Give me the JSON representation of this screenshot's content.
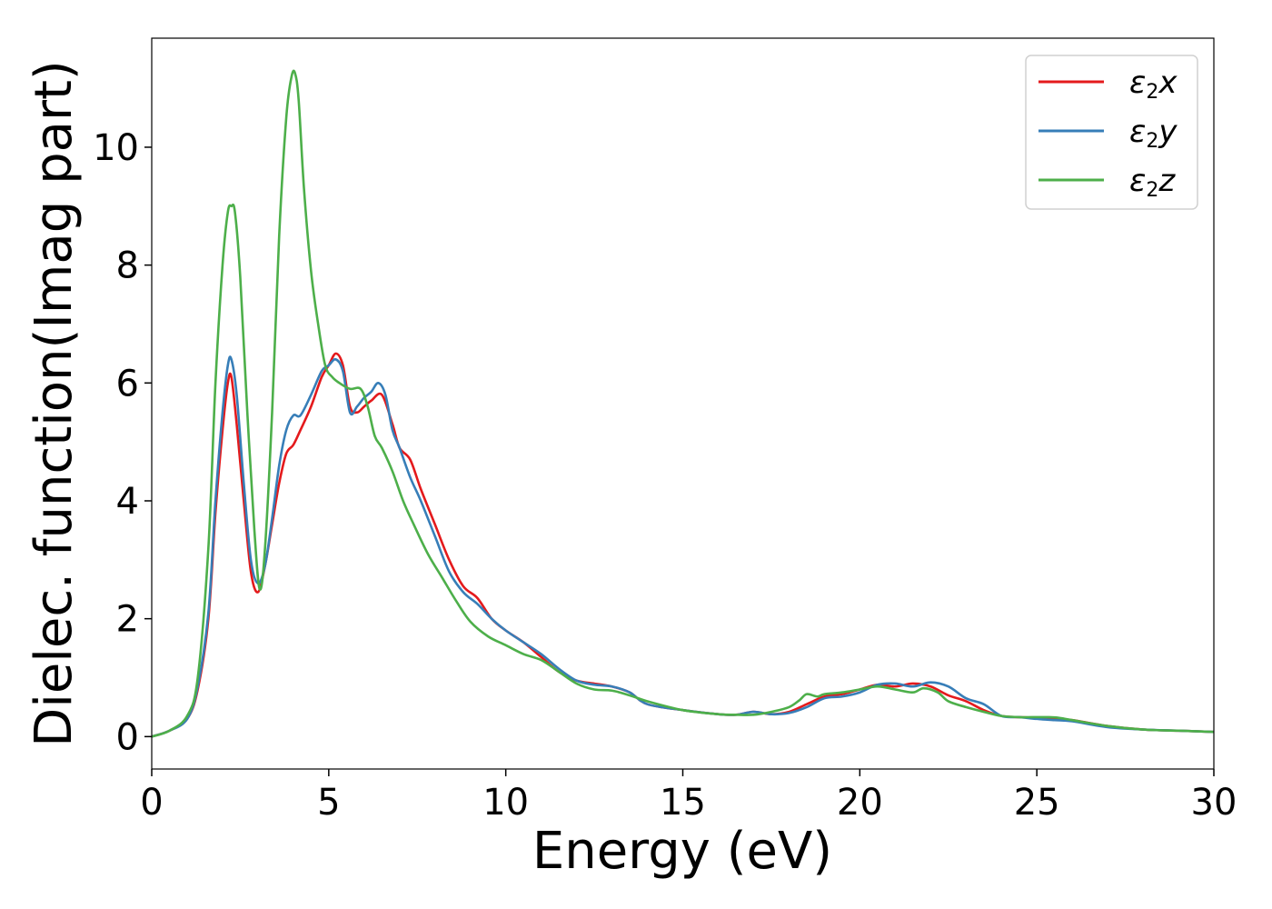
{
  "chart_data": {
    "type": "line",
    "title": "",
    "xlabel": "Energy (eV)",
    "ylabel": "Dielec. function(Imag part)",
    "xlim": [
      0,
      30
    ],
    "ylim": [
      -0.55,
      11.85
    ],
    "xticks": [
      0,
      5,
      10,
      15,
      20,
      25,
      30
    ],
    "yticks": [
      0,
      2,
      4,
      6,
      8,
      10
    ],
    "grid": false,
    "legend_position": "top-right",
    "series": [
      {
        "name": "ε2x",
        "legend": {
          "base": "ε",
          "sub": "2",
          "suffix": "x"
        },
        "color": "#e41a1c",
        "x": [
          0,
          0.5,
          1.0,
          1.3,
          1.6,
          1.8,
          2.0,
          2.15,
          2.25,
          2.4,
          2.6,
          2.8,
          3.0,
          3.2,
          3.4,
          3.6,
          3.8,
          4.0,
          4.2,
          4.5,
          4.8,
          5.0,
          5.2,
          5.4,
          5.6,
          5.8,
          6.0,
          6.2,
          6.5,
          6.8,
          7.0,
          7.3,
          7.6,
          8.0,
          8.4,
          8.8,
          9.2,
          9.6,
          10.0,
          10.5,
          11.0,
          11.5,
          12.0,
          12.5,
          13.0,
          13.5,
          14.0,
          15.0,
          16.0,
          16.5,
          17.0,
          17.5,
          18.0,
          18.5,
          19.0,
          19.5,
          20.0,
          20.5,
          21.0,
          21.5,
          22.0,
          22.5,
          23.0,
          23.5,
          24.0,
          24.5,
          25.0,
          25.5,
          26.0,
          27.0,
          28.0,
          29.0,
          30.0
        ],
        "y": [
          0,
          0.1,
          0.3,
          0.8,
          2.0,
          3.8,
          5.2,
          6.0,
          6.1,
          5.3,
          4.0,
          2.8,
          2.45,
          2.9,
          3.6,
          4.3,
          4.8,
          4.95,
          5.2,
          5.6,
          6.1,
          6.3,
          6.5,
          6.3,
          5.6,
          5.5,
          5.6,
          5.7,
          5.8,
          5.3,
          4.9,
          4.7,
          4.2,
          3.6,
          3.0,
          2.55,
          2.35,
          2.0,
          1.8,
          1.6,
          1.35,
          1.1,
          0.95,
          0.9,
          0.85,
          0.75,
          0.55,
          0.45,
          0.38,
          0.37,
          0.42,
          0.38,
          0.42,
          0.55,
          0.68,
          0.72,
          0.8,
          0.88,
          0.85,
          0.9,
          0.85,
          0.7,
          0.6,
          0.45,
          0.35,
          0.33,
          0.32,
          0.3,
          0.28,
          0.18,
          0.12,
          0.1,
          0.08
        ]
      },
      {
        "name": "ε2y",
        "legend": {
          "base": "ε",
          "sub": "2",
          "suffix": "y"
        },
        "color": "#377eb8",
        "x": [
          0,
          0.5,
          1.0,
          1.3,
          1.6,
          1.8,
          2.0,
          2.15,
          2.25,
          2.4,
          2.6,
          2.8,
          3.0,
          3.2,
          3.4,
          3.6,
          3.8,
          4.0,
          4.2,
          4.5,
          4.8,
          5.0,
          5.2,
          5.4,
          5.6,
          5.8,
          6.0,
          6.2,
          6.4,
          6.6,
          6.8,
          7.0,
          7.3,
          7.6,
          8.0,
          8.4,
          8.8,
          9.2,
          9.6,
          10.0,
          10.5,
          11.0,
          11.5,
          12.0,
          12.5,
          13.0,
          13.5,
          14.0,
          15.0,
          16.0,
          16.5,
          17.0,
          17.5,
          18.0,
          18.5,
          19.0,
          19.5,
          20.0,
          20.5,
          21.0,
          21.5,
          22.0,
          22.5,
          23.0,
          23.5,
          24.0,
          24.5,
          25.0,
          25.5,
          26.0,
          27.0,
          28.0,
          29.0,
          30.0
        ],
        "y": [
          0,
          0.1,
          0.3,
          0.85,
          2.1,
          4.0,
          5.5,
          6.3,
          6.4,
          5.8,
          4.3,
          3.0,
          2.6,
          2.9,
          3.7,
          4.6,
          5.2,
          5.45,
          5.45,
          5.8,
          6.2,
          6.3,
          6.4,
          6.2,
          5.5,
          5.6,
          5.75,
          5.85,
          6.0,
          5.8,
          5.2,
          4.9,
          4.4,
          4.0,
          3.4,
          2.8,
          2.45,
          2.25,
          2.0,
          1.8,
          1.6,
          1.4,
          1.15,
          0.95,
          0.88,
          0.85,
          0.75,
          0.55,
          0.45,
          0.38,
          0.37,
          0.42,
          0.38,
          0.4,
          0.5,
          0.65,
          0.68,
          0.75,
          0.88,
          0.9,
          0.85,
          0.92,
          0.85,
          0.65,
          0.55,
          0.35,
          0.33,
          0.3,
          0.28,
          0.26,
          0.16,
          0.12,
          0.1,
          0.08
        ]
      },
      {
        "name": "ε2z",
        "legend": {
          "base": "ε",
          "sub": "2",
          "suffix": "z"
        },
        "color": "#4daf4a",
        "x": [
          0,
          0.5,
          1.0,
          1.3,
          1.6,
          1.8,
          2.0,
          2.15,
          2.25,
          2.35,
          2.5,
          2.7,
          2.9,
          3.05,
          3.2,
          3.4,
          3.6,
          3.8,
          3.95,
          4.05,
          4.15,
          4.3,
          4.5,
          4.7,
          4.9,
          5.1,
          5.3,
          5.6,
          5.9,
          6.1,
          6.3,
          6.5,
          6.8,
          7.1,
          7.4,
          7.8,
          8.2,
          8.6,
          9.0,
          9.5,
          10.0,
          10.5,
          11.0,
          11.5,
          12.0,
          12.5,
          13.0,
          13.5,
          14.0,
          15.0,
          16.0,
          16.5,
          17.0,
          17.5,
          18.0,
          18.3,
          18.5,
          18.8,
          19.0,
          19.5,
          20.0,
          20.5,
          21.0,
          21.5,
          21.8,
          22.2,
          22.5,
          23.0,
          23.5,
          24.0,
          24.5,
          25.0,
          25.3,
          25.6,
          26.0,
          27.0,
          28.0,
          29.0,
          30.0
        ],
        "y": [
          0,
          0.1,
          0.35,
          1.0,
          3.2,
          6.0,
          8.0,
          8.9,
          9.0,
          8.9,
          7.8,
          5.5,
          3.5,
          2.5,
          3.2,
          5.5,
          8.5,
          10.5,
          11.2,
          11.25,
          10.8,
          9.3,
          7.9,
          7.0,
          6.3,
          6.1,
          6.0,
          5.9,
          5.9,
          5.6,
          5.1,
          4.9,
          4.5,
          4.0,
          3.6,
          3.1,
          2.7,
          2.3,
          1.95,
          1.7,
          1.55,
          1.4,
          1.3,
          1.1,
          0.9,
          0.8,
          0.78,
          0.7,
          0.6,
          0.45,
          0.38,
          0.37,
          0.37,
          0.42,
          0.5,
          0.62,
          0.72,
          0.68,
          0.72,
          0.75,
          0.8,
          0.85,
          0.8,
          0.75,
          0.82,
          0.75,
          0.6,
          0.5,
          0.42,
          0.35,
          0.33,
          0.33,
          0.33,
          0.32,
          0.28,
          0.18,
          0.12,
          0.1,
          0.08
        ]
      }
    ]
  }
}
